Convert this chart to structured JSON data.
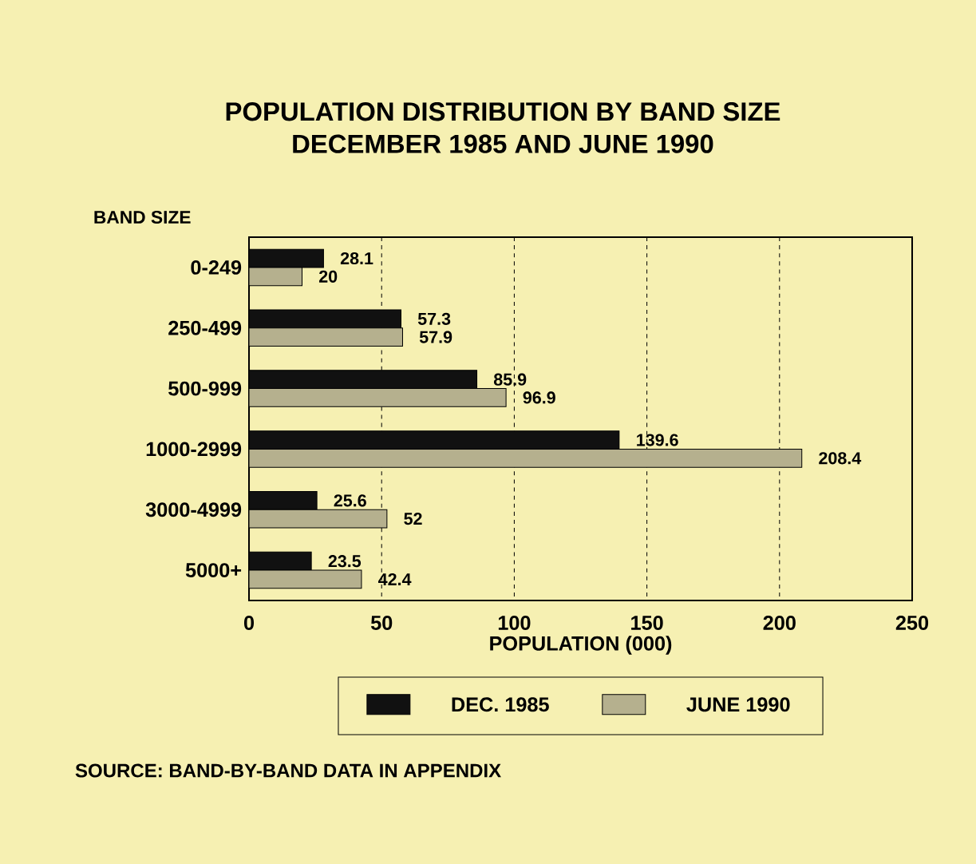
{
  "chart_data": {
    "type": "bar",
    "orientation": "horizontal",
    "title": "POPULATION DISTRIBUTION BY BAND SIZE\nDECEMBER 1985 AND JUNE 1990",
    "ylabel": "BAND SIZE",
    "xlabel": "POPULATION (000)",
    "categories": [
      "0-249",
      "250-499",
      "500-999",
      "1000-2999",
      "3000-4999",
      "5000+"
    ],
    "series": [
      {
        "name": "DEC. 1985",
        "color": "#111111",
        "values": [
          28.1,
          57.3,
          85.9,
          139.6,
          25.6,
          23.5
        ]
      },
      {
        "name": "JUNE 1990",
        "color": "#b5b08e",
        "values": [
          20,
          57.9,
          96.9,
          208.4,
          52,
          42.4
        ]
      }
    ],
    "xlim": [
      0,
      250
    ],
    "xticks": [
      0,
      50,
      100,
      150,
      200,
      250
    ],
    "grid": "x",
    "legend": "bottom",
    "data_labels": true,
    "annotations": [
      "SOURCE: BAND-BY-BAND DATA IN APPENDIX"
    ]
  }
}
